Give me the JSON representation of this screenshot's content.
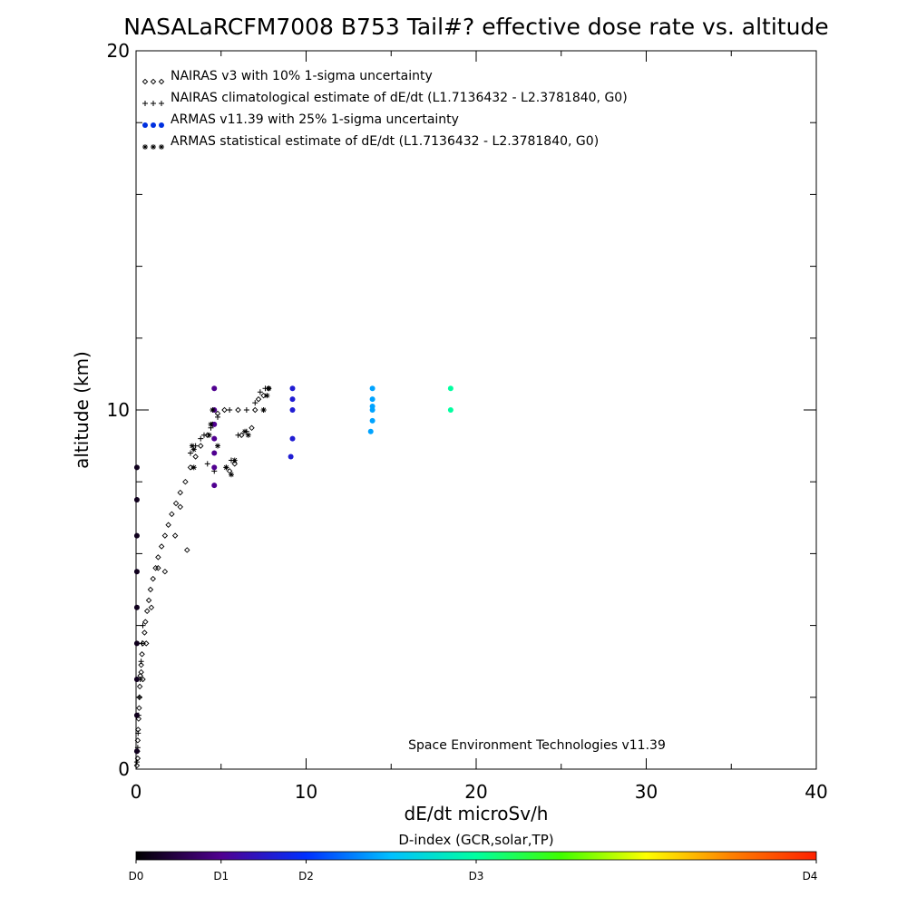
{
  "chart_data": {
    "type": "scatter",
    "title": "NASALaRCFM7008  B753 Tail#? effective dose rate vs. altitude",
    "xlabel": "dE/dt microSv/h",
    "ylabel": "altitude (km)",
    "xlim": [
      0,
      40
    ],
    "ylim": [
      0,
      20
    ],
    "x_ticks": [
      0,
      10,
      20,
      30,
      40
    ],
    "x_tick_labels": [
      "0",
      "10",
      "20",
      "30",
      "40"
    ],
    "y_ticks": [
      0,
      10,
      20
    ],
    "y_tick_labels": [
      "0",
      "10",
      "20"
    ],
    "y_minor_step": 2,
    "grid": false,
    "legend_position": "top-left",
    "credit": "Space Environment Technologies v11.39",
    "series": [
      {
        "name": "NAIRAS v3 with 10% 1-sigma uncertainty",
        "legend_symbols": "◇◇◇",
        "marker": "diamond",
        "color": "#000000",
        "points": [
          [
            0.05,
            0.1
          ],
          [
            0.1,
            0.3
          ],
          [
            0.08,
            0.5
          ],
          [
            0.1,
            0.8
          ],
          [
            0.12,
            1.1
          ],
          [
            0.15,
            1.4
          ],
          [
            0.18,
            1.7
          ],
          [
            0.2,
            2.0
          ],
          [
            0.22,
            2.3
          ],
          [
            0.25,
            2.6
          ],
          [
            0.3,
            2.9
          ],
          [
            0.35,
            3.2
          ],
          [
            0.4,
            3.5
          ],
          [
            0.5,
            3.8
          ],
          [
            0.55,
            4.1
          ],
          [
            0.65,
            4.4
          ],
          [
            0.75,
            4.7
          ],
          [
            0.85,
            5.0
          ],
          [
            1.0,
            5.3
          ],
          [
            1.15,
            5.6
          ],
          [
            1.3,
            5.9
          ],
          [
            1.5,
            6.2
          ],
          [
            1.7,
            6.5
          ],
          [
            1.9,
            6.8
          ],
          [
            2.1,
            7.1
          ],
          [
            2.35,
            7.4
          ],
          [
            2.6,
            7.7
          ],
          [
            2.9,
            8.0
          ],
          [
            3.2,
            8.4
          ],
          [
            3.5,
            8.7
          ],
          [
            3.8,
            9.0
          ],
          [
            4.2,
            9.3
          ],
          [
            4.5,
            9.6
          ],
          [
            4.8,
            9.9
          ],
          [
            5.2,
            10.0
          ],
          [
            6.0,
            10.0
          ],
          [
            7.0,
            10.0
          ],
          [
            6.2,
            9.3
          ],
          [
            6.8,
            9.5
          ],
          [
            7.2,
            10.3
          ],
          [
            7.5,
            10.4
          ],
          [
            7.8,
            10.6
          ],
          [
            5.5,
            8.3
          ],
          [
            5.8,
            8.5
          ],
          [
            1.7,
            5.5
          ],
          [
            2.3,
            6.5
          ],
          [
            3.0,
            6.1
          ],
          [
            0.9,
            4.5
          ],
          [
            0.6,
            3.5
          ],
          [
            0.4,
            2.5
          ],
          [
            0.3,
            2.7
          ],
          [
            2.6,
            7.3
          ],
          [
            1.3,
            5.6
          ]
        ]
      },
      {
        "name": "NAIRAS climatological estimate of dE/dt (L1.7136432 - L2.3781840, G0)",
        "legend_symbols": "+++",
        "marker": "plus",
        "color": "#000000",
        "points": [
          [
            0.05,
            0.2
          ],
          [
            0.1,
            0.6
          ],
          [
            0.12,
            1.0
          ],
          [
            0.15,
            1.5
          ],
          [
            0.2,
            2.0
          ],
          [
            0.25,
            2.5
          ],
          [
            0.3,
            3.0
          ],
          [
            0.35,
            3.5
          ],
          [
            0.4,
            4.0
          ],
          [
            3.2,
            8.8
          ],
          [
            3.5,
            9.0
          ],
          [
            4.0,
            9.3
          ],
          [
            4.4,
            9.5
          ],
          [
            4.8,
            9.8
          ],
          [
            5.5,
            10.0
          ],
          [
            6.5,
            10.0
          ],
          [
            7.5,
            10.0
          ],
          [
            4.2,
            8.5
          ],
          [
            4.6,
            8.3
          ],
          [
            5.3,
            8.4
          ],
          [
            5.6,
            8.6
          ],
          [
            6.0,
            9.3
          ],
          [
            6.5,
            9.4
          ],
          [
            7.0,
            10.2
          ],
          [
            7.3,
            10.5
          ],
          [
            7.6,
            10.6
          ],
          [
            3.8,
            9.2
          ]
        ]
      },
      {
        "name": "ARMAS v11.39 with 25% 1-sigma uncertainty",
        "legend_symbols": "●●●",
        "marker": "dot",
        "color": "#0030e0",
        "points": [
          [
            4.6,
            10.6,
            0.5
          ],
          [
            4.6,
            10.0,
            0.5
          ],
          [
            4.6,
            9.6,
            0.5
          ],
          [
            4.6,
            9.2,
            0.5
          ],
          [
            4.6,
            8.8,
            0.5
          ],
          [
            4.6,
            8.4,
            0.5
          ],
          [
            4.6,
            7.9,
            0.5
          ],
          [
            9.2,
            10.6,
            0.8
          ],
          [
            9.2,
            10.3,
            0.8
          ],
          [
            9.2,
            10.0,
            0.8
          ],
          [
            9.2,
            9.2,
            0.8
          ],
          [
            9.1,
            8.7,
            0.8
          ],
          [
            13.9,
            10.6,
            1.4
          ],
          [
            13.9,
            10.3,
            1.4
          ],
          [
            13.9,
            10.1,
            1.4
          ],
          [
            13.9,
            10.0,
            1.4
          ],
          [
            13.9,
            9.7,
            1.4
          ],
          [
            13.8,
            9.4,
            1.4
          ],
          [
            18.5,
            10.6,
            2.0
          ],
          [
            18.5,
            10.0,
            2.0
          ],
          [
            0.05,
            8.4,
            0.1
          ],
          [
            0.05,
            7.5,
            0.1
          ],
          [
            0.05,
            6.5,
            0.1
          ],
          [
            0.05,
            5.5,
            0.1
          ],
          [
            0.05,
            4.5,
            0.1
          ],
          [
            0.05,
            3.5,
            0.1
          ],
          [
            0.05,
            2.5,
            0.1
          ],
          [
            0.05,
            1.5,
            0.1
          ],
          [
            0.05,
            0.5,
            0.1
          ]
        ]
      },
      {
        "name": "ARMAS statistical estimate of dE/dt (L1.7136432 - L2.3781840, G0)",
        "legend_symbols": "✱✱✱",
        "marker": "asterisk",
        "color": "#000000",
        "points": [
          [
            3.4,
            8.4
          ],
          [
            3.4,
            8.9
          ],
          [
            3.3,
            9.0
          ],
          [
            4.3,
            9.3
          ],
          [
            4.4,
            9.6
          ],
          [
            4.5,
            10.0
          ],
          [
            5.6,
            8.2
          ],
          [
            5.8,
            8.6
          ],
          [
            6.4,
            9.4
          ],
          [
            6.6,
            9.3
          ],
          [
            7.5,
            10.0
          ],
          [
            7.7,
            10.4
          ],
          [
            7.8,
            10.6
          ],
          [
            5.3,
            8.4
          ],
          [
            4.8,
            9.0
          ]
        ]
      }
    ],
    "colorbar": {
      "label": "D-index (GCR,solar,TP)",
      "ticks": [
        {
          "label": "D0",
          "value": 0
        },
        {
          "label": "D1",
          "value": 1
        },
        {
          "label": "D2",
          "value": 2
        },
        {
          "label": "D3",
          "value": 3
        },
        {
          "label": "D4",
          "value": 4
        }
      ],
      "tick_fractions": [
        0,
        0.125,
        0.25,
        0.5,
        1.0
      ],
      "stops": [
        "#000000",
        "#500090",
        "#0030ff",
        "#00c0ff",
        "#00ffa0",
        "#40ff00",
        "#ffff00",
        "#ff8000",
        "#ff2000"
      ]
    }
  }
}
